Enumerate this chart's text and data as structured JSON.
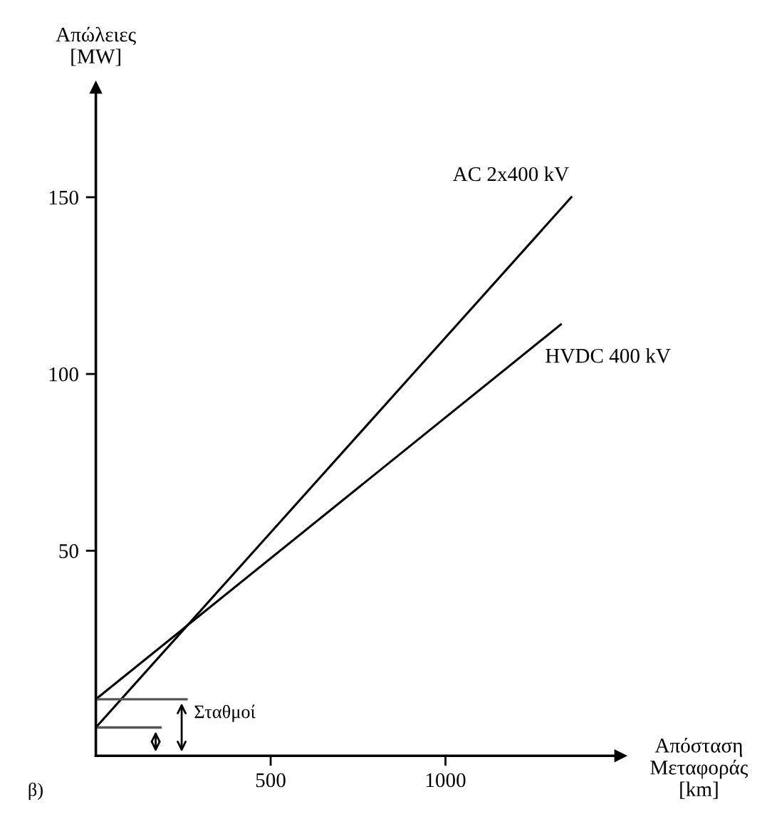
{
  "chart_data": {
    "type": "line",
    "xlabel": "Απόσταση\nΜεταφοράς\n[km]",
    "ylabel": "Απώλειες\n[MW]",
    "series": [
      {
        "name": "AC 2x400 kV",
        "color": "#000000",
        "x": [
          0,
          1360
        ],
        "values": [
          0,
          150
        ]
      },
      {
        "name": "HVDC 400 kV",
        "color": "#000000",
        "x": [
          0,
          1330
        ],
        "values": [
          8,
          114
        ]
      }
    ],
    "xlim": [
      0,
      1500
    ],
    "ylim": [
      -8,
      181
    ],
    "xticks": [
      500,
      1000
    ],
    "yticks": [
      50,
      100,
      150
    ],
    "grid": false,
    "legend": false,
    "marker": "none",
    "line_style": "solid",
    "annotations": [
      {
        "text": "Σταθμοί",
        "x": 0,
        "y": 8
      },
      "β)"
    ]
  }
}
